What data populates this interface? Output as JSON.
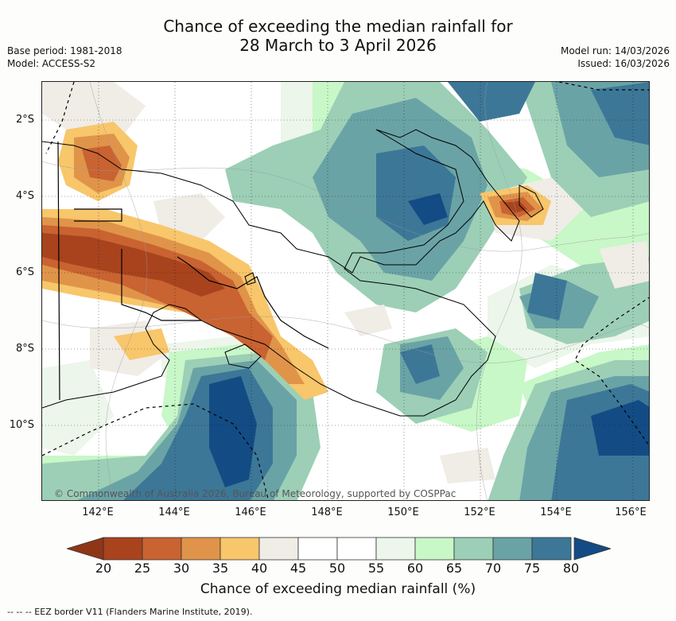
{
  "title": {
    "line1": "Chance of exceeding the median rainfall for",
    "line2": "28 March to 3 April 2026"
  },
  "meta": {
    "base_period": "Base period: 1981-2018",
    "model": "Model: ACCESS-S2",
    "model_run": "Model run: 14/03/2026",
    "issued": "Issued: 16/03/2026"
  },
  "map": {
    "lat_labels": [
      "2°S",
      "4°S",
      "6°S",
      "8°S",
      "10°S"
    ],
    "lon_labels": [
      "142°E",
      "144°E",
      "146°E",
      "148°E",
      "150°E",
      "152°E",
      "154°E",
      "156°E"
    ],
    "credit": "© Commonwealth of Australia 2026, Bureau of Meteorology, supported by COSPPac"
  },
  "legend": {
    "ticks": [
      "20",
      "25",
      "30",
      "35",
      "40",
      "45",
      "50",
      "55",
      "60",
      "65",
      "70",
      "75",
      "80"
    ],
    "colors": [
      "#a8431e",
      "#c96331",
      "#e0944a",
      "#f8c66b",
      "#f0ece6",
      "#ffffff",
      "#ffffff",
      "#ecf6ea",
      "#c8f7c8",
      "#9ccfb6",
      "#6aa3a6",
      "#3d7797"
    ],
    "under_color": "#8f3617",
    "over_color": "#134c84",
    "title": "Chance of exceeding median rainfall (%)"
  },
  "footnote": "-- -- -- EEZ border V11 (Flanders Marine Institute, 2019)."
}
